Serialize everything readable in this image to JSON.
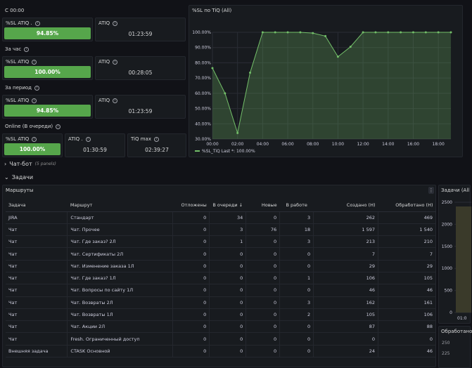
{
  "top_label": "С 00:00",
  "groups": [
    {
      "label": "С 00:00",
      "stats": [
        {
          "title": "%SL ATIQ .",
          "value": "94.85%",
          "style": "green"
        },
        {
          "title": "ATIQ",
          "value": "01:23:59",
          "style": "text"
        }
      ]
    },
    {
      "label": "За час",
      "stats": [
        {
          "title": "%SL ATIQ",
          "value": "100.00%",
          "style": "green"
        },
        {
          "title": "ATIQ",
          "value": "00:28:05",
          "style": "text"
        }
      ]
    },
    {
      "label": "За период",
      "stats": [
        {
          "title": "%SL ATIQ",
          "value": "94.85%",
          "style": "green"
        },
        {
          "title": "ATIQ",
          "value": "01:23:59",
          "style": "text"
        }
      ]
    }
  ],
  "online": {
    "label": "Online (В очереди)",
    "stats": [
      {
        "title": "%SL ATIQ",
        "value": "100.00%"
      },
      {
        "title": "ATIQ .",
        "value": "01:30:59"
      },
      {
        "title": "TiQ max",
        "value": "02:39:27"
      }
    ]
  },
  "chart_panel_title": "%SL по TiQ (All)",
  "chart_data": {
    "type": "line",
    "x": [
      "00:00",
      "01:00",
      "02:00",
      "03:00",
      "04:00",
      "05:00",
      "06:00",
      "07:00",
      "08:00",
      "09:00",
      "10:00",
      "11:00",
      "12:00",
      "13:00",
      "14:00",
      "15:00",
      "16:00",
      "17:00",
      "18:00",
      "19:00"
    ],
    "series": [
      {
        "name": "%SL_TiQ",
        "values": [
          76.5,
          60,
          34,
          73.5,
          100,
          100,
          100,
          100,
          99.5,
          97.5,
          84,
          90.5,
          100,
          100,
          100,
          100,
          100,
          100,
          100,
          100
        ]
      }
    ],
    "x_ticks": [
      "00:00",
      "02:00",
      "04:00",
      "06:00",
      "08:00",
      "10:00",
      "12:00",
      "14:00",
      "16:00",
      "18:00"
    ],
    "y_ticks": [
      "100.00%",
      "90.00%",
      "80.00%",
      "70.00%",
      "60.00%",
      "50.00%",
      "40.00%",
      "30.00%"
    ],
    "ylim": [
      30,
      100
    ],
    "legend_text": "%SL_TiQ  Last *: 100.00%",
    "color": "#73bf69"
  },
  "chat_bot": {
    "label": "Чат-бот",
    "note": "(5 panels)"
  },
  "tasks_row": {
    "label": "Задачи"
  },
  "routes_panel_title": "Маршруты",
  "table": {
    "headers": [
      "Задача",
      "Маршрут",
      "Отложены",
      "В очереди ↓",
      "Новые",
      "В работе",
      "Создано (Н)",
      "Обработано (Н)"
    ],
    "rows": [
      [
        "JIRA",
        "Стандарт",
        "0",
        "34",
        "0",
        "3",
        "262",
        "469"
      ],
      [
        "Чат",
        "Чат. Прочее",
        "0",
        "3",
        "76",
        "18",
        "1 597",
        "1 540"
      ],
      [
        "Чат",
        "Чат. Где заказ? 2Л",
        "0",
        "1",
        "0",
        "3",
        "213",
        "210"
      ],
      [
        "Чат",
        "Чат. Сертификаты 2Л",
        "0",
        "0",
        "0",
        "0",
        "7",
        "7"
      ],
      [
        "Чат",
        "Чат. Изменение заказа 1Л",
        "0",
        "0",
        "0",
        "0",
        "29",
        "29"
      ],
      [
        "Чат",
        "Чат. Где заказ? 1Л",
        "0",
        "0",
        "0",
        "1",
        "106",
        "105"
      ],
      [
        "Чат",
        "Чат. Вопросы по сайту 1Л",
        "0",
        "0",
        "0",
        "0",
        "46",
        "46"
      ],
      [
        "Чат",
        "Чат. Возвраты 2Л",
        "0",
        "0",
        "0",
        "3",
        "162",
        "161"
      ],
      [
        "Чат",
        "Чат. Возвраты 1Л",
        "0",
        "0",
        "0",
        "2",
        "105",
        "106"
      ],
      [
        "Чат",
        "Чат. Акции 2Л",
        "0",
        "0",
        "0",
        "0",
        "87",
        "88"
      ],
      [
        "Чат",
        "Fresh. Ограниченный доступ",
        "0",
        "0",
        "0",
        "0",
        "0",
        "0"
      ],
      [
        "Внешняя задача",
        "CTASK Основной",
        "0",
        "0",
        "0",
        "0",
        "24",
        "46"
      ]
    ]
  },
  "right_panel1": {
    "title": "Задачи (All",
    "y_ticks": [
      "2500",
      "2000",
      "1500",
      "1000",
      "500",
      "0"
    ],
    "x_tick": "01:0"
  },
  "right_panel2": {
    "title": "Обработано",
    "y_ticks": [
      "250",
      "225"
    ]
  }
}
